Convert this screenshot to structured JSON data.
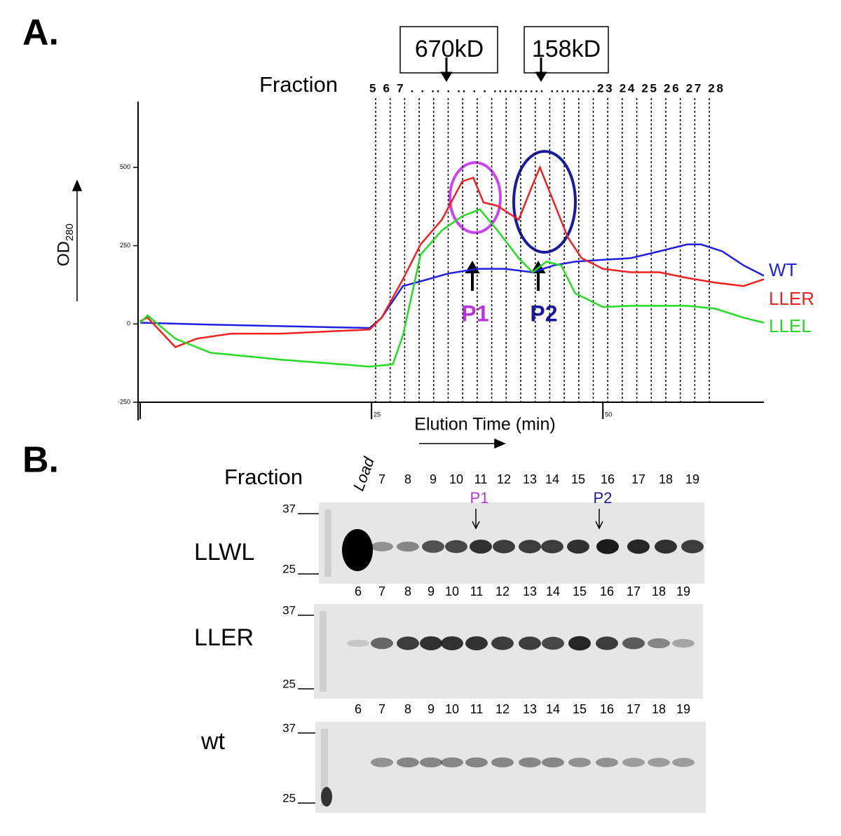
{
  "panel_labels": [
    "A.",
    "B."
  ],
  "chart_data": {
    "type": "line",
    "fraction_title": "Fraction",
    "fraction_numbers": "5 6 7 . . .. . .. . . .......... .........23 24 25 26 27 28",
    "markers": [
      "670kD",
      "158kD"
    ],
    "peaks": [
      "P1",
      "P2"
    ],
    "y_label": "OD",
    "y_label_sub": "280",
    "x_label": "Elution Time (min)",
    "xlim": [
      0,
      67.4
    ],
    "xticks": [
      25,
      50
    ],
    "ylim": [
      -250,
      710
    ],
    "yticks": [
      500,
      250,
      0,
      -250
    ],
    "series": [
      {
        "name": "WT",
        "color": "#1f1fe0",
        "x": [
          0,
          7.6,
          15.2,
          24.8,
          26.1,
          28.4,
          30.3,
          33.3,
          36.4,
          39.4,
          42.4,
          44.7,
          47,
          50,
          53,
          56.1,
          59.1,
          60.6,
          62.9,
          65.2,
          67.4
        ],
        "values": [
          4,
          -2,
          -7,
          -13,
          20,
          121,
          136,
          161,
          176,
          176,
          165,
          187,
          199,
          205,
          210,
          232,
          254,
          254,
          232,
          187,
          154
        ]
      },
      {
        "name": "LLER",
        "color": "#f02020",
        "x": [
          0,
          0.8,
          3.8,
          6.1,
          9.8,
          15.2,
          24.8,
          26.1,
          28.4,
          30.3,
          32.6,
          34.8,
          36,
          37.1,
          38.6,
          40.9,
          42.4,
          43.2,
          44.7,
          46.2,
          47.7,
          50,
          53,
          56.1,
          59.1,
          62.1,
          65.2,
          67.4
        ],
        "values": [
          9,
          20,
          -74,
          -47,
          -31,
          -31,
          -18,
          20,
          143,
          254,
          333,
          455,
          467,
          388,
          377,
          333,
          444,
          500,
          388,
          277,
          210,
          176,
          165,
          165,
          147,
          132,
          121,
          143
        ]
      },
      {
        "name": "LLEL",
        "color": "#22dd22",
        "x": [
          0,
          0.8,
          3.8,
          7.6,
          15.2,
          24.8,
          27.3,
          28.4,
          30.3,
          32.6,
          34.8,
          36.7,
          38.6,
          40.9,
          42.4,
          43.9,
          45.5,
          47,
          50,
          53,
          56.1,
          59.1,
          62.1,
          65.2,
          67.4
        ],
        "values": [
          4,
          27,
          -47,
          -92,
          -114,
          -136,
          -129,
          -36,
          221,
          299,
          344,
          366,
          299,
          210,
          165,
          199,
          187,
          98,
          54,
          58,
          58,
          58,
          49,
          20,
          4
        ]
      }
    ]
  },
  "gel_panel": {
    "fraction_title": "Fraction",
    "load": "Load",
    "peaks": [
      "P1",
      "P2"
    ],
    "gels": [
      {
        "name": "LLWL",
        "ladder": [
          "37",
          "25"
        ],
        "lanes": [
          "7",
          "8",
          "9",
          "10",
          "11",
          "12",
          "13",
          "14",
          "15",
          "16",
          "17",
          "18",
          "19"
        ]
      },
      {
        "name": "LLER",
        "ladder": [
          "37",
          "25"
        ],
        "lanes": [
          "6",
          "7",
          "8",
          "9",
          "10",
          "11",
          "12",
          "13",
          "14",
          "15",
          "16",
          "17",
          "18",
          "19"
        ]
      },
      {
        "name": "wt",
        "ladder": [
          "37",
          "25"
        ],
        "lanes": [
          "6",
          "7",
          "8",
          "9",
          "10",
          "11",
          "12",
          "13",
          "14",
          "15",
          "16",
          "17",
          "18",
          "19"
        ]
      }
    ]
  }
}
